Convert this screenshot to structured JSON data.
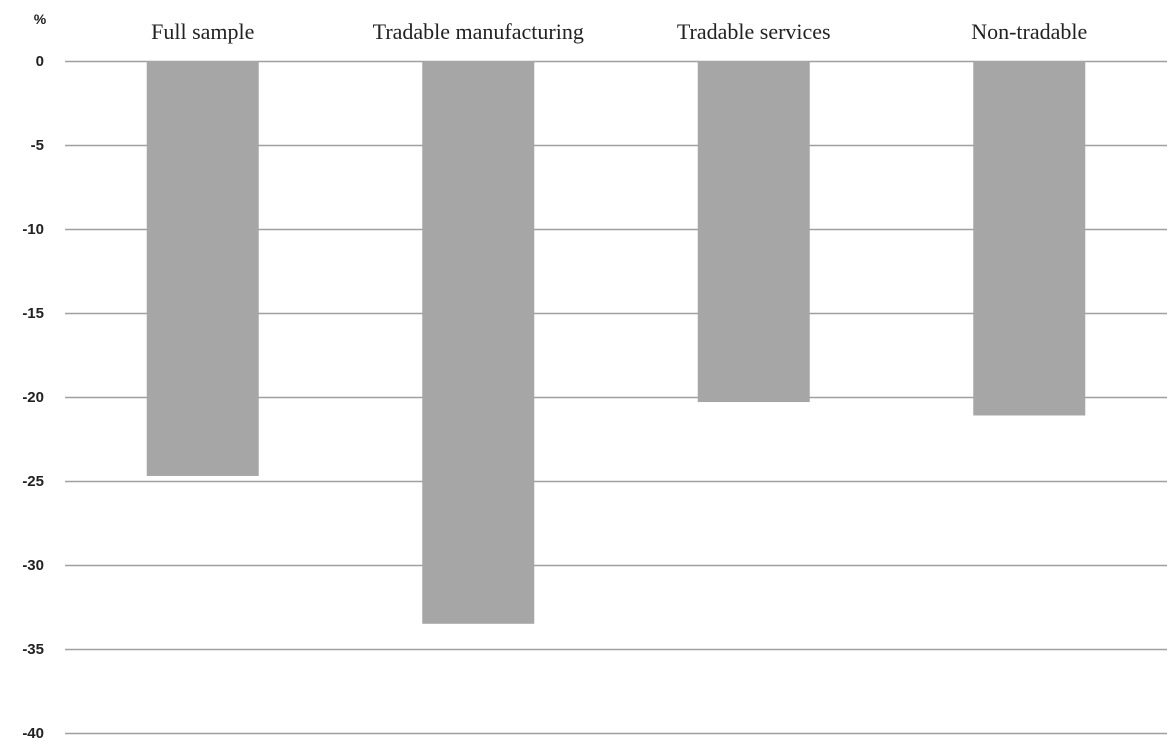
{
  "chart_data": {
    "type": "bar",
    "unit_label": "%",
    "categories": [
      "Full sample",
      "Tradable manufacturing",
      "Tradable services",
      "Non-tradable"
    ],
    "values": [
      -24.7,
      -33.5,
      -20.3,
      -21.1
    ],
    "ylim": [
      -40,
      0
    ],
    "yticks": [
      0,
      -5,
      -10,
      -15,
      -20,
      -25,
      -30,
      -35,
      -40
    ],
    "grid": true,
    "category_labels_position": "top",
    "colors": {
      "bar": "#a6a6a6",
      "grid": "#a0a0a0",
      "text": "#222222"
    }
  }
}
